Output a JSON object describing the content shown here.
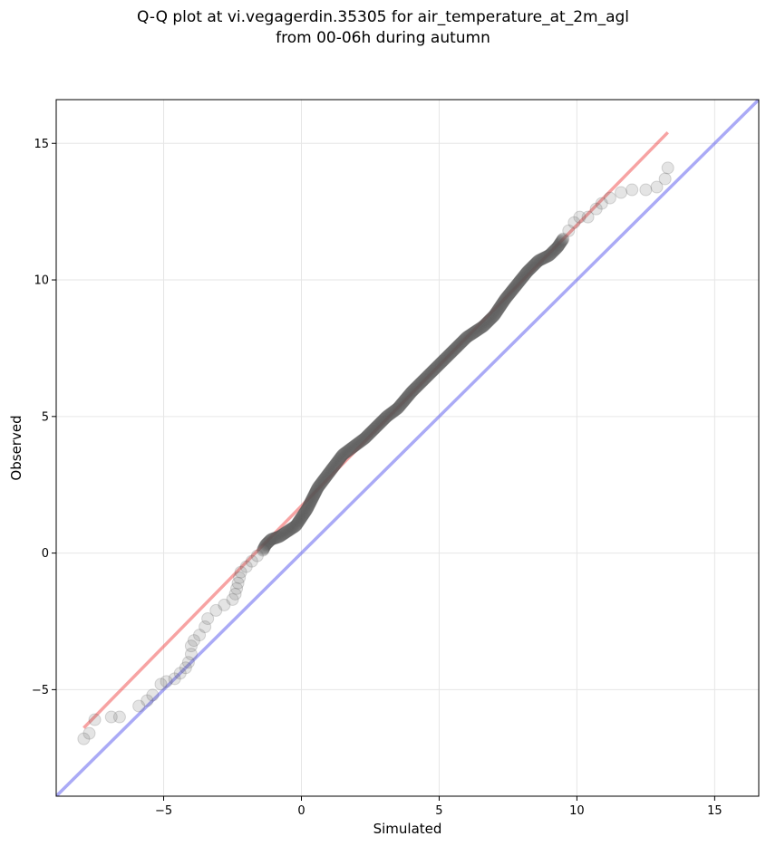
{
  "chart_data": {
    "type": "scatter",
    "title_line1": "Q-Q plot at vi.vegagerdin.35305 for air_temperature_at_2m_agl",
    "title_line2": "from 00-06h during autumn",
    "xlabel": "Simulated",
    "ylabel": "Observed",
    "xlim": [
      -8.9,
      16.6
    ],
    "ylim": [
      -8.9,
      16.6
    ],
    "xticks": [
      -5,
      0,
      5,
      10,
      15
    ],
    "yticks": [
      -5,
      0,
      5,
      10,
      15
    ],
    "xtick_labels": [
      "−5",
      "0",
      "5",
      "10",
      "15"
    ],
    "ytick_labels": [
      "−5",
      "0",
      "5",
      "10",
      "15"
    ],
    "grid": true,
    "colors": {
      "points": "#555555",
      "fit_line": "#ee3333",
      "identity_line": "#5555ee"
    },
    "series": [
      {
        "kind": "quantile_points",
        "points": [
          [
            -7.9,
            -6.8
          ],
          [
            -7.7,
            -6.6
          ],
          [
            -7.5,
            -6.1
          ],
          [
            -6.9,
            -6.0
          ],
          [
            -6.6,
            -6.0
          ],
          [
            -5.9,
            -5.6
          ],
          [
            -5.6,
            -5.4
          ],
          [
            -5.4,
            -5.2
          ],
          [
            -5.1,
            -4.8
          ],
          [
            -4.9,
            -4.7
          ],
          [
            -4.6,
            -4.6
          ],
          [
            -4.4,
            -4.4
          ],
          [
            -4.2,
            -4.2
          ],
          [
            -4.1,
            -4.0
          ],
          [
            -4.0,
            -3.7
          ],
          [
            -4.0,
            -3.4
          ],
          [
            -3.9,
            -3.2
          ],
          [
            -3.7,
            -3.0
          ],
          [
            -3.5,
            -2.7
          ],
          [
            -3.4,
            -2.4
          ],
          [
            -3.1,
            -2.1
          ],
          [
            -2.8,
            -1.9
          ],
          [
            -2.5,
            -1.7
          ],
          [
            -2.4,
            -1.5
          ],
          [
            -2.35,
            -1.3
          ],
          [
            -2.3,
            -1.1
          ],
          [
            -2.25,
            -0.9
          ],
          [
            -2.2,
            -0.7
          ],
          [
            -2.0,
            -0.5
          ],
          [
            -1.8,
            -0.3
          ],
          [
            -1.6,
            -0.1
          ],
          [
            -1.4,
            0.1
          ],
          [
            -1.3,
            0.3
          ],
          [
            -1.1,
            0.5
          ],
          [
            -0.8,
            0.6
          ],
          [
            -0.5,
            0.8
          ],
          [
            -0.2,
            1.0
          ],
          [
            0.0,
            1.3
          ],
          [
            0.2,
            1.6
          ],
          [
            0.4,
            2.0
          ],
          [
            0.6,
            2.4
          ],
          [
            0.9,
            2.8
          ],
          [
            1.2,
            3.2
          ],
          [
            1.5,
            3.6
          ],
          [
            1.9,
            3.9
          ],
          [
            2.3,
            4.2
          ],
          [
            2.7,
            4.6
          ],
          [
            3.1,
            5.0
          ],
          [
            3.5,
            5.3
          ],
          [
            4.0,
            5.9
          ],
          [
            4.5,
            6.4
          ],
          [
            5.0,
            6.9
          ],
          [
            5.5,
            7.4
          ],
          [
            6.0,
            7.9
          ],
          [
            6.6,
            8.3
          ],
          [
            7.0,
            8.7
          ],
          [
            7.4,
            9.3
          ],
          [
            7.8,
            9.8
          ],
          [
            8.2,
            10.3
          ],
          [
            8.6,
            10.7
          ],
          [
            9.0,
            10.9
          ],
          [
            9.3,
            11.2
          ],
          [
            9.5,
            11.5
          ],
          [
            9.7,
            11.8
          ],
          [
            9.9,
            12.1
          ],
          [
            10.1,
            12.3
          ],
          [
            10.4,
            12.3
          ],
          [
            10.7,
            12.6
          ],
          [
            10.9,
            12.8
          ],
          [
            11.2,
            13.0
          ],
          [
            11.6,
            13.2
          ],
          [
            12.0,
            13.3
          ],
          [
            12.5,
            13.3
          ],
          [
            12.9,
            13.4
          ],
          [
            13.2,
            13.7
          ],
          [
            13.3,
            14.1
          ]
        ]
      },
      {
        "kind": "fit_line",
        "x": [
          -7.9,
          13.3
        ],
        "y": [
          -6.4,
          15.4
        ]
      },
      {
        "kind": "identity_line",
        "x": [
          -8.9,
          16.6
        ],
        "y": [
          -8.9,
          16.6
        ]
      }
    ]
  }
}
